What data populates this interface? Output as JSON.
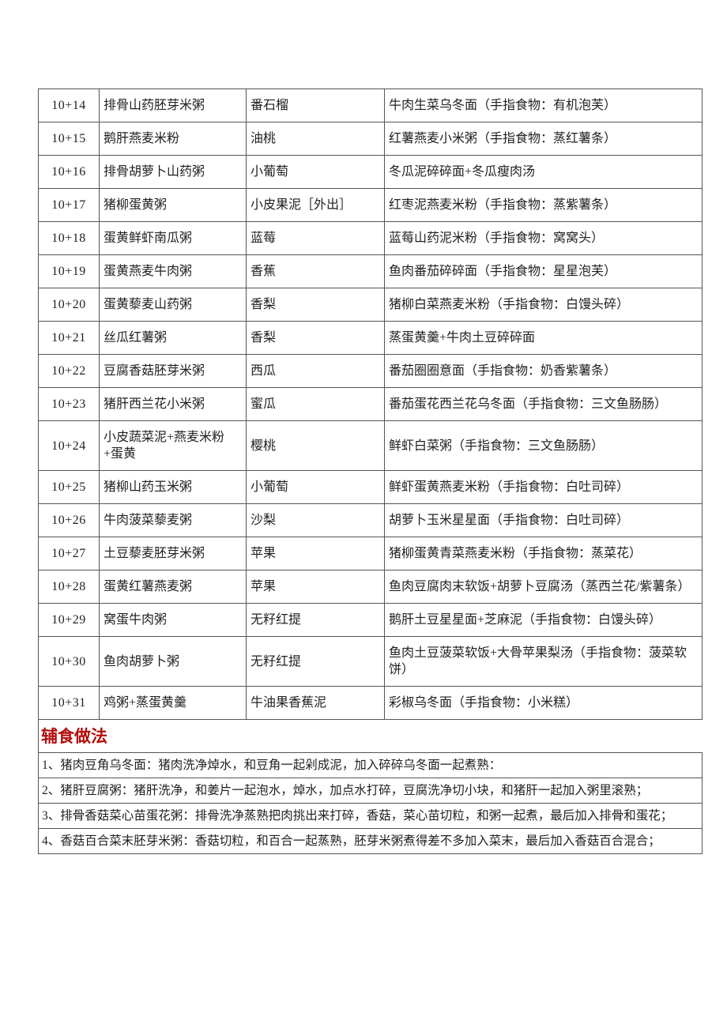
{
  "colors": {
    "page_background": "#ffffff",
    "border": "#555555",
    "text": "#1f1f1f",
    "heading_red": "#b20d0d"
  },
  "menu_table": {
    "rows": [
      {
        "day": "10+14",
        "breakfast": "排骨山药胚芽米粥",
        "fruit": "番石榴",
        "dinner": "牛肉生菜乌冬面（手指食物：有机泡芙）"
      },
      {
        "day": "10+15",
        "breakfast": "鹅肝燕麦米粉",
        "fruit": "油桃",
        "dinner": "红薯燕麦小米粥（手指食物：蒸红薯条）"
      },
      {
        "day": "10+16",
        "breakfast": "排骨胡萝卜山药粥",
        "fruit": "小葡萄",
        "dinner": "冬瓜泥碎碎面+冬瓜瘦肉汤"
      },
      {
        "day": "10+17",
        "breakfast": "猪柳蛋黄粥",
        "fruit": "小皮果泥［外出］",
        "dinner": "红枣泥燕麦米粉（手指食物：蒸紫薯条）"
      },
      {
        "day": "10+18",
        "breakfast": "蛋黄鲜虾南瓜粥",
        "fruit": "蓝莓",
        "dinner": "蓝莓山药泥米粉（手指食物：窝窝头）"
      },
      {
        "day": "10+19",
        "breakfast": "蛋黄燕麦牛肉粥",
        "fruit": "香蕉",
        "dinner": "鱼肉番茄碎碎面（手指食物：星星泡芙）"
      },
      {
        "day": "10+20",
        "breakfast": "蛋黄藜麦山药粥",
        "fruit": "香梨",
        "dinner": "猪柳白菜燕麦米粉（手指食物：白馒头碎）"
      },
      {
        "day": "10+21",
        "breakfast": "丝瓜红薯粥",
        "fruit": "香梨",
        "dinner": "蒸蛋黄羹+牛肉土豆碎碎面"
      },
      {
        "day": "10+22",
        "breakfast": "豆腐香菇胚芽米粥",
        "fruit": "西瓜",
        "dinner": "番茄圈圈意面（手指食物：奶香紫薯条）"
      },
      {
        "day": "10+23",
        "breakfast": "猪肝西兰花小米粥",
        "fruit": "蜜瓜",
        "dinner": "番茄蛋花西兰花乌冬面（手指食物：三文鱼肠肠）"
      },
      {
        "day": "10+24",
        "breakfast": "小皮蔬菜泥+燕麦米粉+蛋黄",
        "fruit": "樱桃",
        "dinner": "鲜虾白菜粥（手指食物：三文鱼肠肠）"
      },
      {
        "day": "10+25",
        "breakfast": "猪柳山药玉米粥",
        "fruit": "小葡萄",
        "dinner": "鲜虾蛋黄燕麦米粉（手指食物：白吐司碎）"
      },
      {
        "day": "10+26",
        "breakfast": "牛肉菠菜藜麦粥",
        "fruit": "沙梨",
        "dinner": "胡萝卜玉米星星面（手指食物：白吐司碎）"
      },
      {
        "day": "10+27",
        "breakfast": "土豆藜麦胚芽米粥",
        "fruit": "苹果",
        "dinner": "猪柳蛋黄青菜燕麦米粉（手指食物：蒸菜花）"
      },
      {
        "day": "10+28",
        "breakfast": "蛋黄红薯燕麦粥",
        "fruit": "苹果",
        "dinner": "鱼肉豆腐肉末软饭+胡萝卜豆腐汤（蒸西兰花/紫薯条）"
      },
      {
        "day": "10+29",
        "breakfast": "窝蛋牛肉粥",
        "fruit": "无籽红提",
        "dinner": "鹅肝土豆星星面+芝麻泥（手指食物：白馒头碎）"
      },
      {
        "day": "10+30",
        "breakfast": "鱼肉胡萝卜粥",
        "fruit": "无籽红提",
        "dinner": "鱼肉土豆菠菜软饭+大骨苹果梨汤（手指食物：菠菜软饼）"
      },
      {
        "day": "10+31",
        "breakfast": "鸡粥+蒸蛋黄羹",
        "fruit": "牛油果香蕉泥",
        "dinner": "彩椒乌冬面（手指食物：小米糕）"
      }
    ]
  },
  "section": {
    "title": "辅食做法"
  },
  "instructions": [
    "1、猪肉豆角乌冬面：猪肉洗净焯水，和豆角一起剁成泥，加入碎碎乌冬面一起煮熟：",
    "2、猪肝豆腐粥：猪肝洗净，和姜片一起泡水，焯水，加点水打碎，豆腐洗净切小块，和猪肝一起加入粥里滚熟；",
    "3、排骨香菇菜心苗蛋花粥：排骨洗净蒸熟把肉挑出来打碎，香菇，菜心苗切粒，和粥一起煮，最后加入排骨和蛋花；",
    "4、香菇百合菜末胚芽米粥：香菇切粒，和百合一起蒸熟，胚芽米粥煮得差不多加入菜末，最后加入香菇百合混合；"
  ]
}
